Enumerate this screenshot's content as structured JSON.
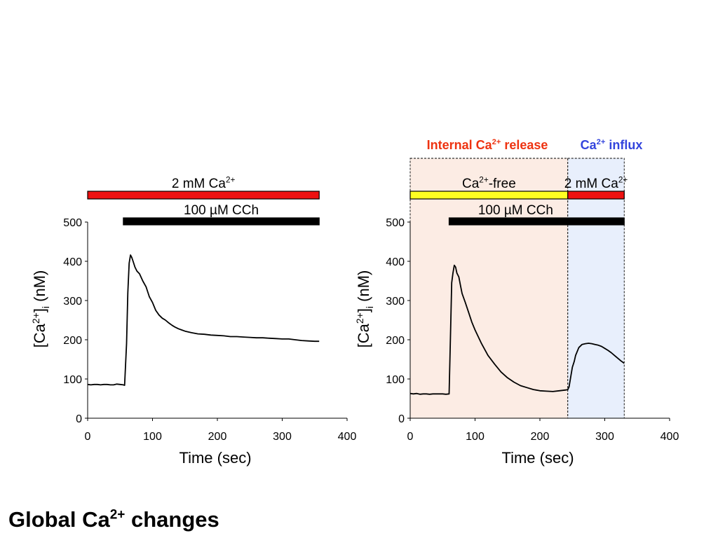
{
  "slide_title": {
    "main": "Global Ca",
    "sup": "2+",
    "rest": " changes"
  },
  "colors": {
    "trace": "#000000",
    "ca_bar": "#ee1111",
    "free_bar": "#ffff22",
    "cch_bar": "#000000",
    "release_label": "#ee3311",
    "influx_label": "#3344dd",
    "release_shade": "#fcece4",
    "influx_shade": "#e8effc"
  },
  "chart_data": [
    {
      "type": "line",
      "xlabel": "Time (sec)",
      "ylabel": {
        "pre": "[Ca",
        "sup": "2+",
        "mid": "]",
        "sub": "i",
        "post": " (nM)"
      },
      "xlim": [
        0,
        400
      ],
      "ylim": [
        0,
        500
      ],
      "x_ticks": [
        "0",
        "100",
        "200",
        "300",
        "400"
      ],
      "y_ticks": [
        "0",
        "100",
        "200",
        "300",
        "400",
        "500"
      ],
      "treatments": [
        {
          "label": "2 mM Ca",
          "sup": "2+",
          "start": 0,
          "end": 357,
          "color": "#ee1111"
        },
        {
          "label": "100 µM CCh",
          "sup": "",
          "start": 55,
          "end": 357,
          "color": "#000000"
        }
      ],
      "series": [
        {
          "x": [
            0,
            5,
            10,
            15,
            20,
            25,
            30,
            35,
            40,
            45,
            50,
            55,
            57,
            60,
            62,
            64,
            66,
            68,
            70,
            73,
            76,
            80,
            85,
            90,
            95,
            100,
            105,
            110,
            115,
            120,
            125,
            130,
            135,
            140,
            145,
            150,
            160,
            170,
            180,
            190,
            200,
            210,
            220,
            230,
            240,
            250,
            260,
            270,
            280,
            290,
            300,
            310,
            320,
            330,
            340,
            350,
            357
          ],
          "y": [
            86,
            85,
            86,
            86,
            85,
            86,
            86,
            85,
            85,
            87,
            86,
            85,
            84,
            190,
            320,
            395,
            416,
            410,
            400,
            385,
            375,
            368,
            350,
            335,
            310,
            295,
            275,
            263,
            255,
            250,
            243,
            237,
            232,
            228,
            225,
            222,
            218,
            215,
            214,
            212,
            211,
            210,
            208,
            208,
            207,
            206,
            205,
            205,
            204,
            203,
            202,
            202,
            200,
            198,
            197,
            196,
            196
          ]
        }
      ]
    },
    {
      "type": "line",
      "xlabel": "Time (sec)",
      "ylabel": {
        "pre": "[Ca",
        "sup": "2+",
        "mid": "]",
        "sub": "i",
        "post": " (nM)"
      },
      "xlim": [
        0,
        400
      ],
      "ylim": [
        0,
        500
      ],
      "x_ticks": [
        "0",
        "100",
        "200",
        "300",
        "400"
      ],
      "y_ticks": [
        "0",
        "100",
        "200",
        "300",
        "400",
        "500"
      ],
      "phases": [
        {
          "label": "Internal Ca",
          "sup": "2+",
          "post": " release",
          "start": 0,
          "end": 243
        },
        {
          "label": "Ca",
          "sup": "2+",
          "post": " influx",
          "start": 243,
          "end": 330
        }
      ],
      "treatments": [
        {
          "label": "Ca",
          "sup": "2+",
          "post": "-free",
          "start": 0,
          "end": 243,
          "color": "#ffff22"
        },
        {
          "label": "2 mM Ca",
          "sup": "2+",
          "post": "",
          "start": 243,
          "end": 330,
          "color": "#ee1111"
        },
        {
          "label": "100 µM CCh",
          "sup": "",
          "post": "",
          "start": 60,
          "end": 330,
          "color": "#000000"
        }
      ],
      "series": [
        {
          "x": [
            0,
            5,
            10,
            15,
            20,
            25,
            30,
            35,
            40,
            45,
            50,
            55,
            60,
            62,
            64,
            66,
            68,
            70,
            72,
            75,
            78,
            80,
            85,
            90,
            95,
            100,
            110,
            120,
            130,
            140,
            150,
            160,
            170,
            180,
            190,
            200,
            210,
            220,
            230,
            240,
            243,
            245,
            248,
            250,
            253,
            255,
            260,
            265,
            270,
            275,
            280,
            285,
            290,
            295,
            300,
            305,
            310,
            315,
            320,
            325,
            330
          ],
          "y": [
            63,
            62,
            63,
            61,
            62,
            62,
            61,
            62,
            62,
            62,
            62,
            61,
            62,
            205,
            345,
            370,
            390,
            385,
            370,
            360,
            335,
            318,
            295,
            270,
            245,
            225,
            190,
            160,
            138,
            118,
            103,
            92,
            83,
            78,
            73,
            70,
            69,
            68,
            70,
            72,
            73,
            80,
            110,
            130,
            145,
            160,
            180,
            188,
            190,
            191,
            190,
            188,
            186,
            183,
            178,
            173,
            167,
            160,
            153,
            146,
            140
          ]
        }
      ]
    }
  ]
}
